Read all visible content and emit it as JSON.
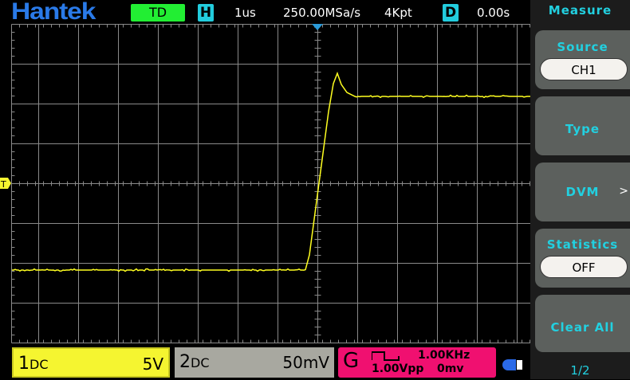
{
  "header": {
    "brand": "Hantek",
    "mode": "TD",
    "h_icon": "H",
    "timebase": "1us",
    "sample_rate": "250.00MSa/s",
    "memory_depth": "4Kpt",
    "d_icon": "D",
    "delay": "0.00s"
  },
  "sidebar": {
    "title": "Measure",
    "items": [
      {
        "label": "Source",
        "value": "CH1"
      },
      {
        "label": "Type"
      },
      {
        "label": "DVM",
        "arrow": ">"
      },
      {
        "label": "Statistics",
        "value": "OFF"
      },
      {
        "label": "Clear All"
      }
    ],
    "page": "1/2"
  },
  "channels": {
    "ch1": {
      "num": "1",
      "coupling": "DC",
      "scale": "5V",
      "color": "#f5f530"
    },
    "ch2": {
      "num": "2",
      "coupling": "DC",
      "scale": "50mV",
      "color": "#a8a8a0"
    }
  },
  "generator": {
    "label": "G",
    "waveform": "square-wave-icon",
    "frequency": "1.00KHz",
    "amplitude": "1.00Vpp",
    "offset": "0mv",
    "color": "#f01070"
  },
  "trigger_marker": "T",
  "trace_color": "#ffff20",
  "usb_icon": "usb-drive-icon"
}
